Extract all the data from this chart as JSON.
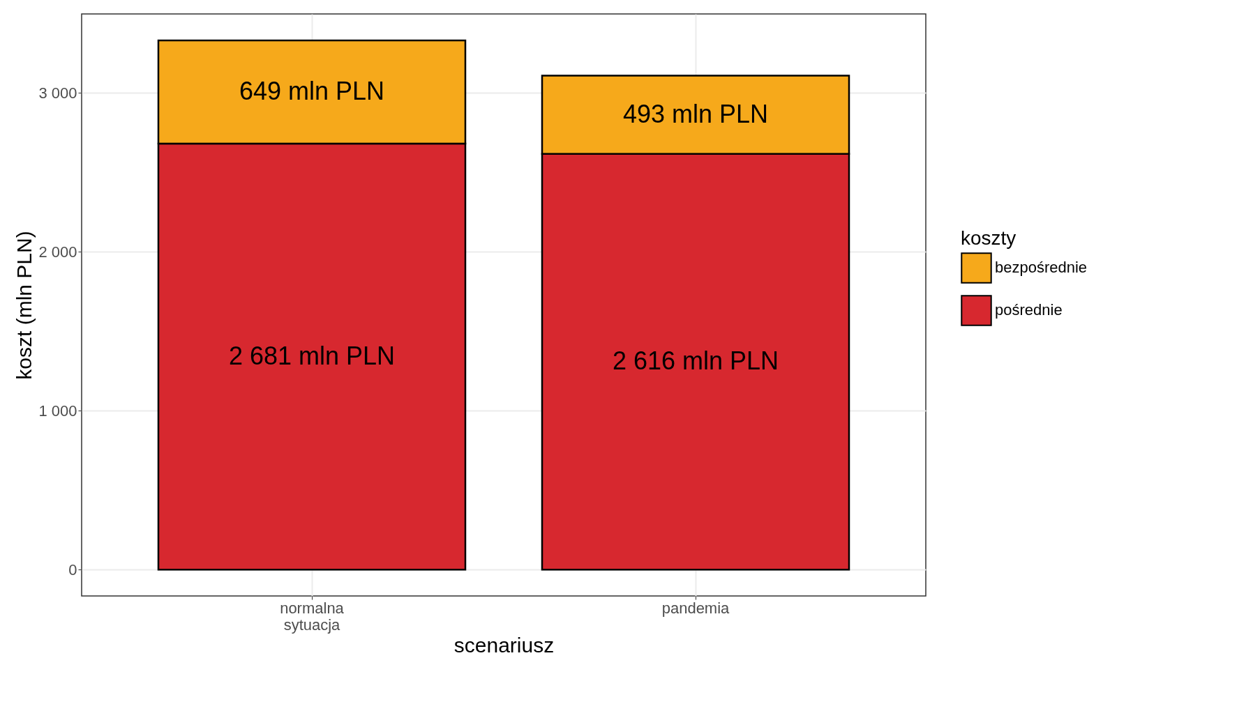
{
  "chart_data": {
    "type": "bar",
    "stacked": true,
    "xlabel": "scenariusz",
    "ylabel": "koszt (mln PLN)",
    "legend_title": "koszty",
    "categories": [
      "normalna sytuacja",
      "pandemia"
    ],
    "series": [
      {
        "name": "pośrednie",
        "color": "#d7282f",
        "values": [
          2681,
          2616
        ],
        "value_labels": [
          "2 681 mln PLN",
          "2 616 mln PLN"
        ]
      },
      {
        "name": "bezpośrednie",
        "color": "#f6a91b",
        "values": [
          649,
          493
        ],
        "value_labels": [
          "649 mln PLN",
          "493 mln PLN"
        ]
      }
    ],
    "ylim": [
      -166,
      3497
    ],
    "yticks": [
      0,
      {
        "value": 1000,
        "label": "1 000"
      },
      {
        "value": 2000,
        "label": "2 000"
      },
      {
        "value": 3000,
        "label": "3 000"
      }
    ],
    "grid": true,
    "legend": "right"
  }
}
